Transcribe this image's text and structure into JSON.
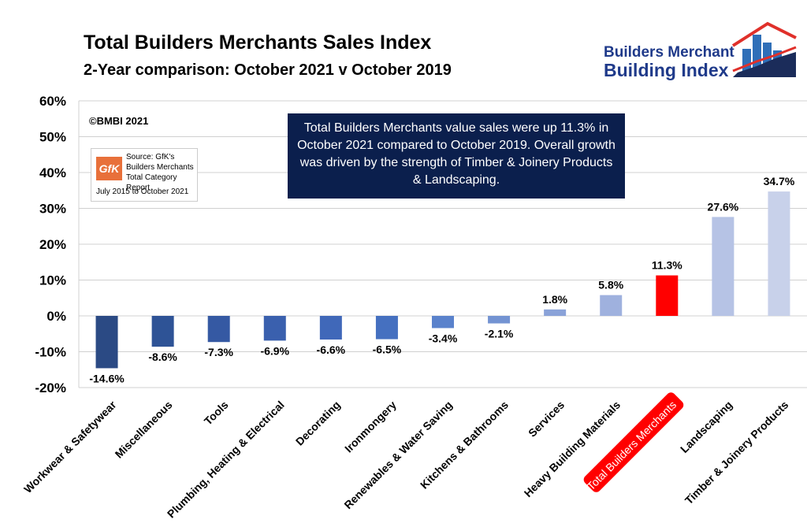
{
  "header": {
    "title": "Total Builders Merchants Sales Index",
    "subtitle": "2-Year comparison: October 2021 v October 2019"
  },
  "logo": {
    "line1": "Builders Merchant",
    "line2": "Building Index"
  },
  "copyright": "©BMBI 2021",
  "source_box": {
    "badge": "GfK",
    "lines": [
      "Source: GfK's",
      "Builders Merchants",
      "Total Category Report"
    ],
    "date": "July 2015 to October 2021"
  },
  "note": "Total Builders Merchants value sales were up 11.3% in October 2021 compared to October 2019. Overall growth was driven by the strength of Timber & Joinery Products & Landscaping.",
  "colors": {
    "highlight": "#ff0000",
    "dark": "#2b4a84",
    "mid": "#4a74c4",
    "light": "#9fb1de",
    "lightest": "#c8d1ea"
  },
  "chart_data": {
    "type": "bar",
    "title": "Total Builders Merchants Sales Index",
    "xlabel": "",
    "ylabel": "",
    "ylim": [
      -20,
      60
    ],
    "yticks": [
      -20,
      -10,
      0,
      10,
      20,
      30,
      40,
      50,
      60
    ],
    "ytick_labels": [
      "-20%",
      "-10%",
      "0%",
      "10%",
      "20%",
      "30%",
      "40%",
      "50%",
      "60%"
    ],
    "categories": [
      "Workwear & Safetywear",
      "Miscellaneous",
      "Tools",
      "Plumbing, Heating & Electrical",
      "Decorating",
      "Ironmongery",
      "Renewables & Water Saving",
      "Kitchens & Bathrooms",
      "Services",
      "Heavy Building Materials",
      "Total Builders Merchants",
      "Landscaping",
      "Timber & Joinery Products"
    ],
    "values": [
      -14.6,
      -8.6,
      -7.3,
      -6.9,
      -6.6,
      -6.5,
      -3.4,
      -2.1,
      1.8,
      5.8,
      11.3,
      27.6,
      34.7
    ],
    "value_labels": [
      "-14.6%",
      "-8.6%",
      "-7.3%",
      "-6.9%",
      "-6.6%",
      "-6.5%",
      "-3.4%",
      "-2.1%",
      "1.8%",
      "5.8%",
      "11.3%",
      "27.6%",
      "34.7%"
    ],
    "bar_colors": [
      "#2b4a84",
      "#2e5396",
      "#3559a3",
      "#3a60ae",
      "#4068b9",
      "#4570c0",
      "#5a82cc",
      "#7393d2",
      "#8aa2d8",
      "#9fb1de",
      "#ff0000",
      "#b6c3e5",
      "#c8d1ea"
    ],
    "highlight_index": 10,
    "grid": true
  }
}
